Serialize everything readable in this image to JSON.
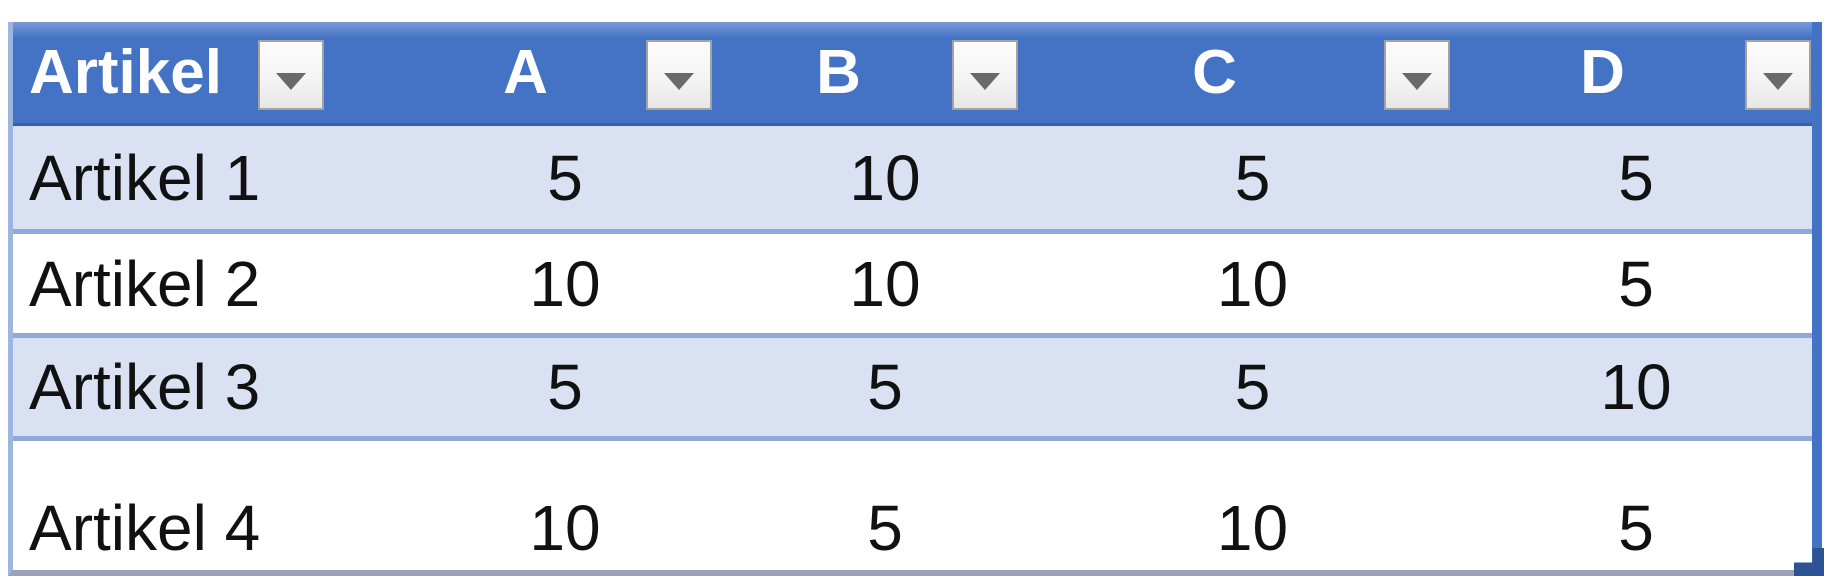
{
  "table": {
    "columns": [
      {
        "label": "Artikel"
      },
      {
        "label": "A"
      },
      {
        "label": "B"
      },
      {
        "label": "C"
      },
      {
        "label": "D"
      }
    ],
    "header_filter_icon": "chevron-down",
    "rows": [
      {
        "label": "Artikel 1",
        "values": [
          "5",
          "10",
          "5",
          "5"
        ]
      },
      {
        "label": "Artikel 2",
        "values": [
          "10",
          "10",
          "10",
          "5"
        ]
      },
      {
        "label": "Artikel 3",
        "values": [
          "5",
          "5",
          "5",
          "10"
        ]
      },
      {
        "label": "Artikel 4",
        "values": [
          "10",
          "5",
          "10",
          "5"
        ]
      }
    ],
    "colors": {
      "header_bg": "#4472C4",
      "header_bg_highlight": "#7A9AD8",
      "header_bottom_border": "#3A60AB",
      "header_text": "#FFFFFF",
      "banded_row_bg": "#D9E1F2",
      "plain_row_bg": "#FFFFFF",
      "row_border": "#8EAADB",
      "left_border": "#9DB5E1",
      "right_border": "#4472C4",
      "bottom_border": "#97A3BA",
      "cell_text": "#111111",
      "filter_button_bg": "#F4F4F4",
      "filter_button_border": "#A3A3A3",
      "filter_arrow": "#6A6A6A",
      "resize_handle": "#2E5395"
    }
  }
}
